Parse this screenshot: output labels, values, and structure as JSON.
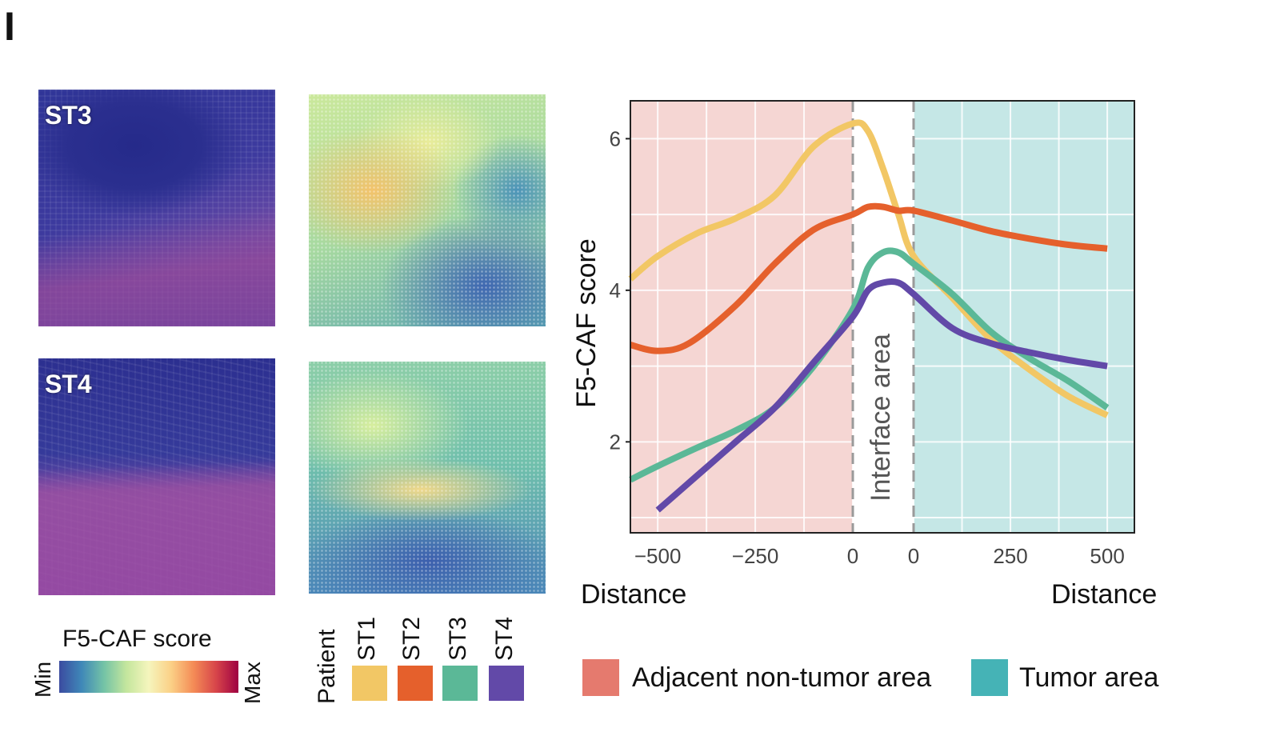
{
  "panel_letter": "I",
  "tissue_panels": [
    {
      "label": "ST3"
    },
    {
      "label": "ST4"
    }
  ],
  "colorbar": {
    "title": "F5-CAF score",
    "min_label": "Min",
    "max_label": "Max",
    "colors": [
      "#3b4ba0",
      "#3f88b8",
      "#74c3a6",
      "#c4e69d",
      "#f5f5bd",
      "#fbd086",
      "#f48b56",
      "#d7454a",
      "#9e0142"
    ]
  },
  "patient_legend": {
    "title": "Patient",
    "items": [
      {
        "label": "ST1",
        "color": "#f2c765"
      },
      {
        "label": "ST2",
        "color": "#e5602c"
      },
      {
        "label": "ST3",
        "color": "#5bb897"
      },
      {
        "label": "ST4",
        "color": "#6249a8"
      }
    ]
  },
  "area_legend": [
    {
      "label": "Adjacent non-tumor area",
      "color": "#e57a6e"
    },
    {
      "label": "Tumor area",
      "color": "#45b3b6"
    }
  ],
  "chart_data": {
    "type": "line",
    "title": "",
    "ylabel": "F5-CAF score",
    "xlabel_left": "Distance",
    "xlabel_right": "Distance",
    "interface_label": "Interface area",
    "ylim": [
      0.8,
      6.5
    ],
    "yticks": [
      2,
      4,
      6
    ],
    "x_ticks_left": [
      -500,
      -250,
      0
    ],
    "x_ticks_right": [
      0,
      250,
      500
    ],
    "xlim_left": [
      -570,
      0
    ],
    "xlim_right": [
      0,
      570
    ],
    "regions": {
      "adjacent_color": "#f5d6d3",
      "interface_color": "#ffffff",
      "tumor_color": "#c5e7e6"
    },
    "series": [
      {
        "name": "ST1",
        "color": "#f2c765",
        "points": [
          [
            -570,
            4.15
          ],
          [
            -500,
            4.45
          ],
          [
            -400,
            4.75
          ],
          [
            -300,
            4.95
          ],
          [
            -200,
            5.25
          ],
          [
            -100,
            5.9
          ],
          [
            0,
            6.2
          ],
          [
            "i0.25",
            6.1
          ],
          [
            "i0.5",
            5.6
          ],
          [
            "i0.75",
            5.0
          ],
          [
            0,
            4.45
          ],
          [
            100,
            3.9
          ],
          [
            200,
            3.35
          ],
          [
            300,
            2.95
          ],
          [
            400,
            2.6
          ],
          [
            500,
            2.35
          ]
        ]
      },
      {
        "name": "ST2",
        "color": "#e5602c",
        "points": [
          [
            -570,
            3.28
          ],
          [
            -500,
            3.2
          ],
          [
            -420,
            3.3
          ],
          [
            -300,
            3.8
          ],
          [
            -200,
            4.35
          ],
          [
            -100,
            4.8
          ],
          [
            0,
            5.0
          ],
          [
            "i0.25",
            5.1
          ],
          [
            "i0.5",
            5.1
          ],
          [
            "i0.75",
            5.05
          ],
          [
            0,
            5.05
          ],
          [
            100,
            4.92
          ],
          [
            200,
            4.78
          ],
          [
            300,
            4.68
          ],
          [
            400,
            4.6
          ],
          [
            500,
            4.55
          ]
        ]
      },
      {
        "name": "ST3",
        "color": "#5bb897",
        "points": [
          [
            -570,
            1.5
          ],
          [
            -500,
            1.68
          ],
          [
            -400,
            1.92
          ],
          [
            -300,
            2.15
          ],
          [
            -200,
            2.45
          ],
          [
            -100,
            3.0
          ],
          [
            0,
            3.75
          ],
          [
            "i0.25",
            4.3
          ],
          [
            "i0.5",
            4.5
          ],
          [
            "i0.75",
            4.5
          ],
          [
            0,
            4.35
          ],
          [
            100,
            3.95
          ],
          [
            200,
            3.45
          ],
          [
            300,
            3.1
          ],
          [
            400,
            2.8
          ],
          [
            500,
            2.45
          ]
        ]
      },
      {
        "name": "ST4",
        "color": "#6249a8",
        "points": [
          [
            -500,
            1.1
          ],
          [
            -400,
            1.55
          ],
          [
            -300,
            2.0
          ],
          [
            -200,
            2.45
          ],
          [
            -100,
            3.05
          ],
          [
            0,
            3.65
          ],
          [
            "i0.25",
            4.0
          ],
          [
            "i0.5",
            4.1
          ],
          [
            "i0.75",
            4.1
          ],
          [
            0,
            3.95
          ],
          [
            100,
            3.5
          ],
          [
            200,
            3.3
          ],
          [
            300,
            3.18
          ],
          [
            400,
            3.08
          ],
          [
            500,
            3.0
          ]
        ]
      }
    ]
  }
}
